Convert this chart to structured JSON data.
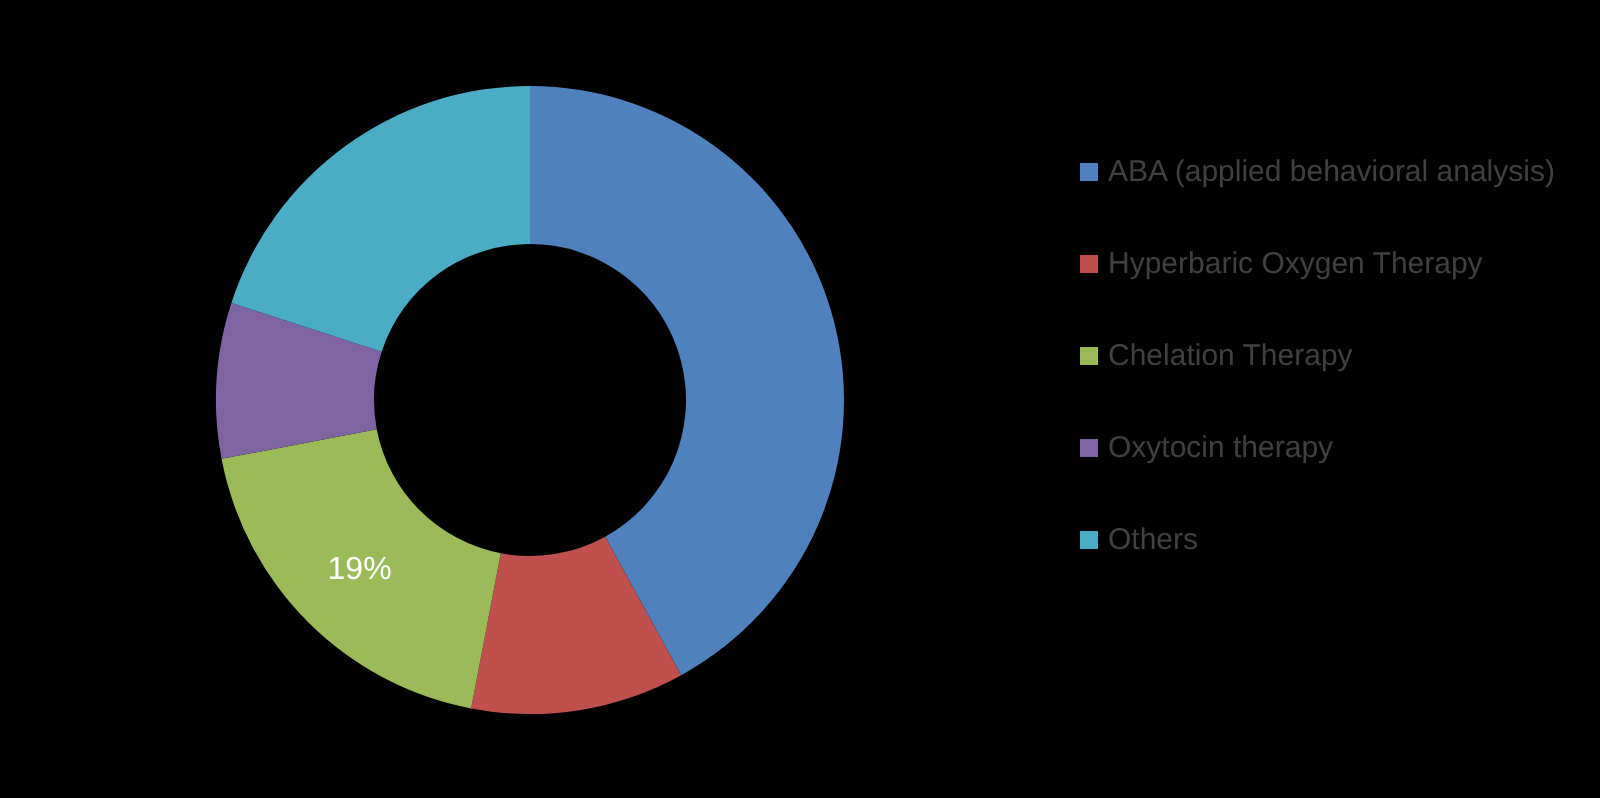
{
  "chart_data": {
    "type": "donut",
    "categories": [
      "ABA (applied behavioral analysis)",
      "Hyperbaric Oxygen Therapy",
      "Chelation Therapy",
      "Oxytocin therapy",
      "Others"
    ],
    "values": [
      42,
      11,
      19,
      8,
      20
    ],
    "colors": [
      "#4f81bd",
      "#c0504d",
      "#9bbb59",
      "#8064a2",
      "#4bacc6"
    ],
    "value_labels": [
      null,
      null,
      "19%",
      null,
      null
    ],
    "legend": "right"
  }
}
